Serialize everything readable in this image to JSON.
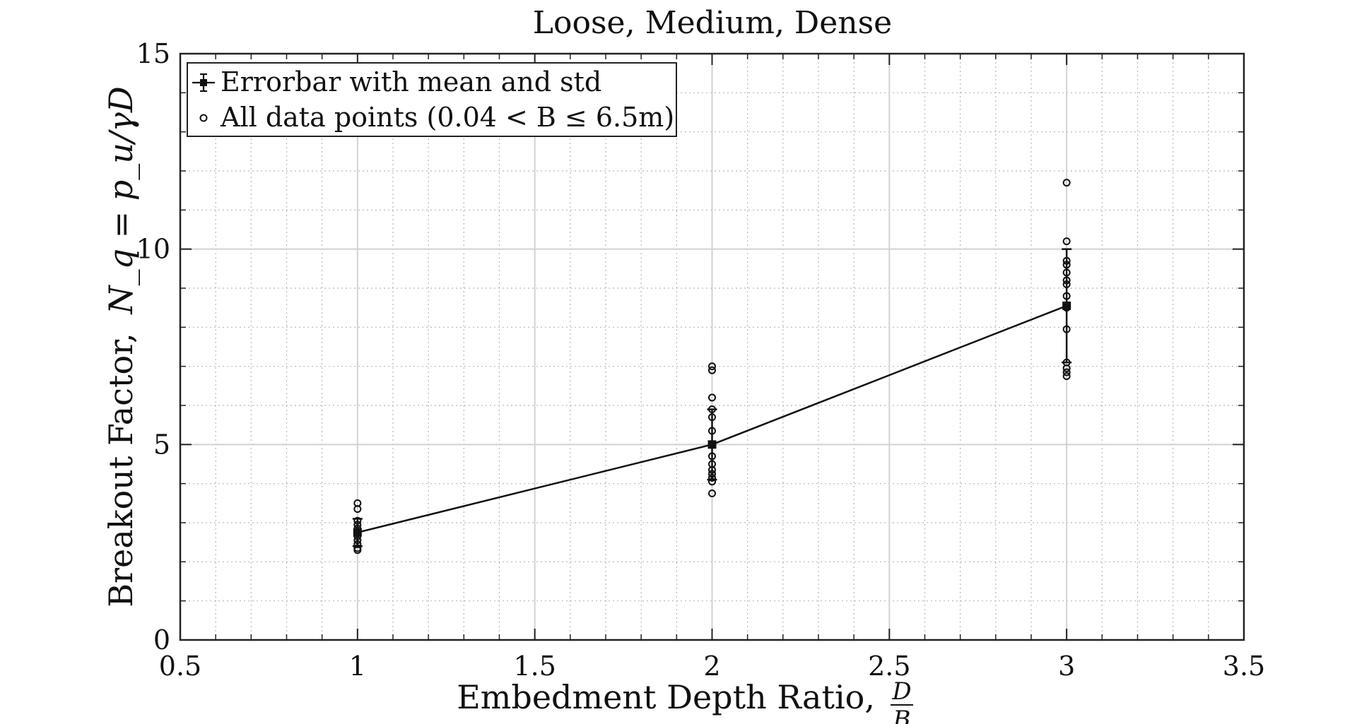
{
  "chart_data": {
    "type": "scatter",
    "title": "Loose, Medium, Dense",
    "xlabel": "Embedment Depth Ratio,",
    "xlabel_math": {
      "numerator": "D",
      "denominator": "B"
    },
    "ylabel": "Breakout Factor,",
    "ylabel_math": "N_q = p_u/γD",
    "xlim": [
      0.5,
      3.5
    ],
    "ylim": [
      0,
      15
    ],
    "xticks": [
      0.5,
      1,
      1.5,
      2,
      2.5,
      3,
      3.5
    ],
    "xtick_labels": [
      "0.5",
      "1",
      "1.5",
      "2",
      "2.5",
      "3",
      "3.5"
    ],
    "yticks": [
      0,
      5,
      10,
      15
    ],
    "ytick_labels": [
      "0",
      "5",
      "10",
      "15"
    ],
    "grid": true,
    "minor_grid": true,
    "legend_position": "top-left",
    "series": [
      {
        "name": "Errorbar with mean and std",
        "type": "errorbar-line",
        "x": [
          1,
          2,
          3
        ],
        "mean": [
          2.75,
          5.0,
          8.55
        ],
        "std": [
          0.35,
          0.9,
          1.45
        ]
      },
      {
        "name": "All data points (0.04 < B ≤ 6.5m)",
        "type": "scatter",
        "points": [
          [
            1,
            3.5
          ],
          [
            1,
            3.35
          ],
          [
            1,
            3.05
          ],
          [
            1,
            2.95
          ],
          [
            1,
            2.85
          ],
          [
            1,
            2.75
          ],
          [
            1,
            2.65
          ],
          [
            1,
            2.55
          ],
          [
            1,
            2.45
          ],
          [
            1,
            2.35
          ],
          [
            1,
            2.3
          ],
          [
            2,
            7.0
          ],
          [
            2,
            6.9
          ],
          [
            2,
            6.2
          ],
          [
            2,
            5.9
          ],
          [
            2,
            5.7
          ],
          [
            2,
            5.35
          ],
          [
            2,
            5.0
          ],
          [
            2,
            4.7
          ],
          [
            2,
            4.5
          ],
          [
            2,
            4.35
          ],
          [
            2,
            4.25
          ],
          [
            2,
            4.15
          ],
          [
            2,
            4.05
          ],
          [
            2,
            3.75
          ],
          [
            3,
            11.7
          ],
          [
            3,
            10.2
          ],
          [
            3,
            9.7
          ],
          [
            3,
            9.6
          ],
          [
            3,
            9.4
          ],
          [
            3,
            9.2
          ],
          [
            3,
            9.1
          ],
          [
            3,
            8.8
          ],
          [
            3,
            8.5
          ],
          [
            3,
            7.95
          ],
          [
            3,
            7.1
          ],
          [
            3,
            6.95
          ],
          [
            3,
            6.85
          ],
          [
            3,
            6.75
          ]
        ]
      }
    ]
  }
}
